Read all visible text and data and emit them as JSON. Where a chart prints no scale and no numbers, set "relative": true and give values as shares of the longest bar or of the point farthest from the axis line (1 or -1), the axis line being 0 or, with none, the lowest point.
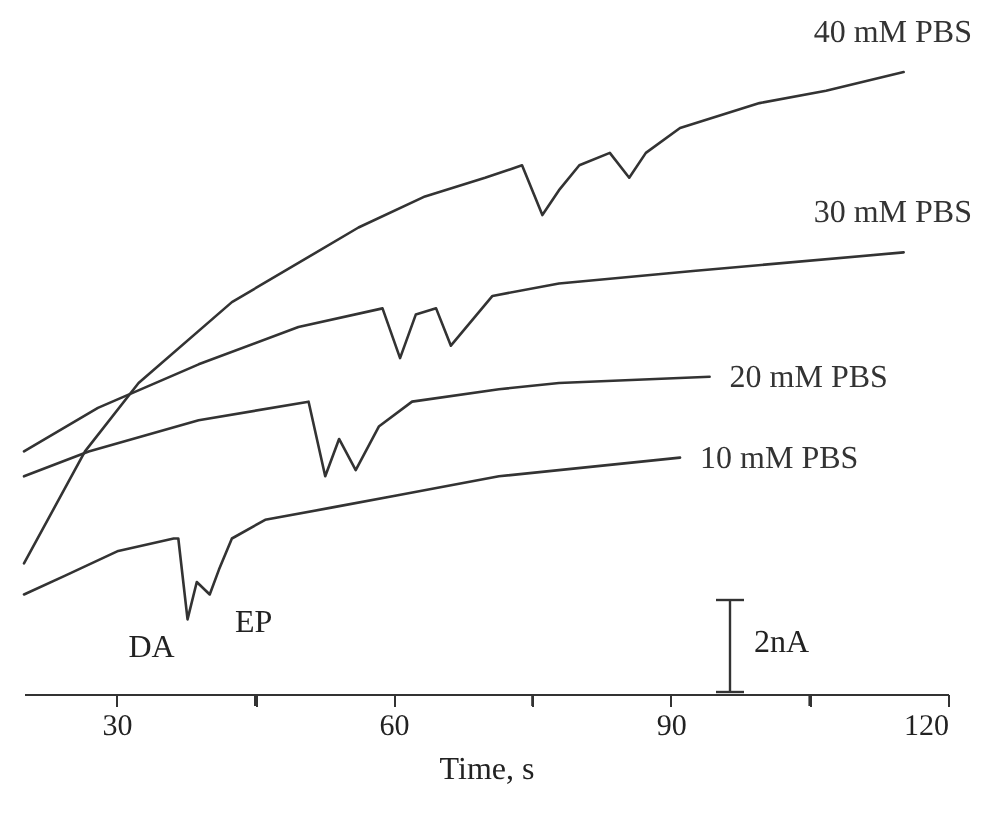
{
  "chart_data": {
    "type": "line",
    "relative": true,
    "xlabel": "Time,  s",
    "xlim": [
      20,
      120
    ],
    "xticks": [
      30,
      {
        "value": 45,
        "label": null
      },
      60,
      {
        "value": 75,
        "label": null
      },
      90,
      {
        "value": 105,
        "label": null
      },
      120
    ],
    "grid": false,
    "marker": "none",
    "line_style": "solid",
    "series": [
      {
        "name": "40 mM PBS",
        "color": "#333333",
        "x": [
          20.0,
          26.6,
          32.4,
          42.5,
          56.2,
          63.4,
          69.9,
          73.9,
          76.1,
          77.9,
          80.1,
          83.4,
          85.5,
          87.3,
          91.0,
          99.6,
          106.8,
          115.2
        ],
        "values": [
          0.21,
          0.39,
          0.5,
          0.63,
          0.75,
          0.8,
          0.83,
          0.85,
          0.77,
          0.81,
          0.85,
          0.87,
          0.83,
          0.87,
          0.91,
          0.95,
          0.97,
          1.0
        ]
      },
      {
        "name": "30 mM PBS",
        "color": "#333333",
        "x": [
          20.0,
          28.0,
          38.9,
          49.7,
          58.8,
          60.7,
          62.4,
          64.6,
          66.2,
          70.7,
          77.9,
          92.4,
          115.2
        ],
        "values": [
          0.39,
          0.46,
          0.53,
          0.59,
          0.62,
          0.54,
          0.61,
          0.62,
          0.56,
          0.64,
          0.66,
          0.68,
          0.71
        ]
      },
      {
        "name": "20 mM PBS",
        "color": "#333333",
        "x": [
          20.0,
          27.0,
          38.9,
          50.8,
          52.6,
          54.1,
          55.9,
          58.4,
          62.0,
          71.4,
          77.9,
          94.2
        ],
        "values": [
          0.35,
          0.39,
          0.44,
          0.47,
          0.35,
          0.41,
          0.36,
          0.43,
          0.47,
          0.49,
          0.5,
          0.51
        ]
      },
      {
        "name": "10 mM PBS",
        "color": "#333333",
        "x": [
          20.0,
          24.4,
          30.2,
          36.2,
          36.7,
          37.7,
          38.7,
          40.1,
          41.1,
          42.5,
          46.1,
          53.4,
          60.6,
          71.4,
          91.0
        ],
        "values": [
          0.16,
          0.19,
          0.23,
          0.25,
          0.25,
          0.12,
          0.18,
          0.16,
          0.2,
          0.25,
          0.28,
          0.3,
          0.32,
          0.35,
          0.38
        ]
      }
    ],
    "annotations": [
      {
        "text": "DA",
        "x": 37.7,
        "y": 0.12
      },
      {
        "text": "EP",
        "x": 40.1,
        "y": 0.16
      },
      "2nA"
    ]
  }
}
